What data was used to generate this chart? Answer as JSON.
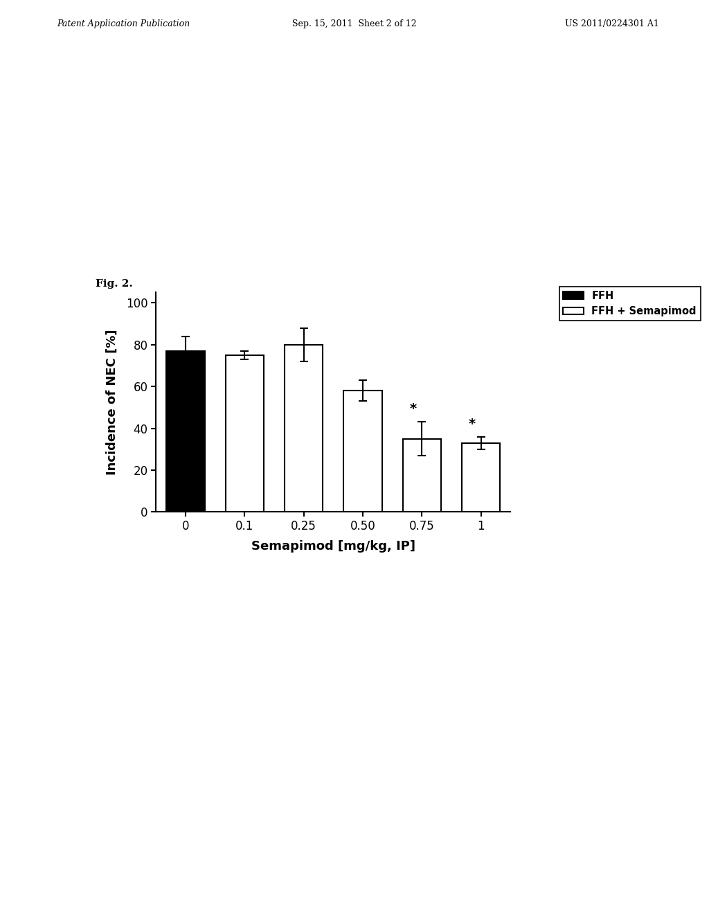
{
  "categories": [
    "0",
    "0.1",
    "0.25",
    "0.50",
    "0.75",
    "1"
  ],
  "bar_values": [
    77,
    75,
    80,
    58,
    35,
    33
  ],
  "bar_colors": [
    "#000000",
    "#ffffff",
    "#ffffff",
    "#ffffff",
    "#ffffff",
    "#ffffff"
  ],
  "bar_edgecolors": [
    "#000000",
    "#000000",
    "#000000",
    "#000000",
    "#000000",
    "#000000"
  ],
  "error_bars": [
    7,
    2,
    8,
    5,
    8,
    3
  ],
  "star_annotations": [
    4,
    5
  ],
  "ylabel": "Incidence of NEC [%]",
  "xlabel": "Semapimod [mg/kg, IP]",
  "ylim": [
    0,
    105
  ],
  "yticks": [
    0,
    20,
    40,
    60,
    80,
    100
  ],
  "fig_label": "Fig. 2.",
  "legend_entries": [
    "FFH",
    "FFH + Semapimod"
  ],
  "legend_colors": [
    "#000000",
    "#ffffff"
  ],
  "header_left": "Patent Application Publication",
  "header_mid": "Sep. 15, 2011  Sheet 2 of 12",
  "header_right": "US 2011/0224301 A1"
}
